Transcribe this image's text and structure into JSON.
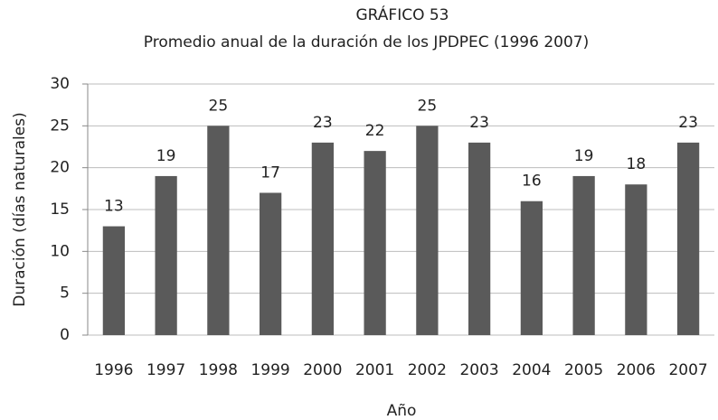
{
  "chart_data": {
    "type": "bar",
    "title": "GRÁFICO 53",
    "subtitle": "Promedio anual de la duración de los JPDPEC (1996 2007)",
    "x_label": "Año",
    "y_label": "Duración (días naturales)",
    "categories": [
      "1996",
      "1997",
      "1998",
      "1999",
      "2000",
      "2001",
      "2002",
      "2003",
      "2004",
      "2005",
      "2006",
      "2007"
    ],
    "values": [
      13,
      19,
      25,
      17,
      23,
      22,
      25,
      23,
      16,
      19,
      18,
      23
    ],
    "color": "#5a5a5a",
    "ylim": [
      0,
      30
    ],
    "yticks": [
      0,
      5,
      10,
      15,
      20,
      25,
      30
    ],
    "grid": true
  }
}
